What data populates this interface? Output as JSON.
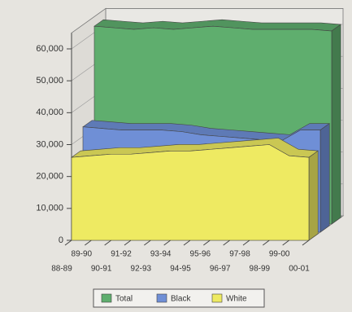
{
  "chart_data": {
    "type": "area3d",
    "categories": [
      "88-89",
      "89-90",
      "90-91",
      "91-92",
      "92-93",
      "93-94",
      "94-95",
      "95-96",
      "96-97",
      "97-98",
      "98-99",
      "99-00",
      "00-01"
    ],
    "series": [
      {
        "name": "Total",
        "color": "#5fae6e",
        "values": [
          62000,
          61500,
          61000,
          61500,
          61000,
          61500,
          62000,
          61500,
          61000,
          61000,
          61000,
          61000,
          60500
        ]
      },
      {
        "name": "Black",
        "color": "#6f8fd6",
        "values": [
          33000,
          32500,
          32000,
          32000,
          32000,
          31500,
          30500,
          30000,
          29500,
          29000,
          28500,
          32000,
          32000
        ]
      },
      {
        "name": "White",
        "color": "#eeea62",
        "values": [
          26000,
          26500,
          27000,
          27000,
          27500,
          28000,
          28000,
          28500,
          29000,
          29500,
          30000,
          26500,
          26000
        ]
      }
    ],
    "ylim": [
      0,
      65000
    ],
    "yticks": [
      0,
      {
        "value": 10000,
        "label": "10,000"
      },
      {
        "value": 20000,
        "label": "20,000"
      },
      {
        "value": 30000,
        "label": "30,000"
      },
      {
        "value": 40000,
        "label": "40,000"
      },
      {
        "value": 50000,
        "label": "50,000"
      },
      {
        "value": 60000,
        "label": "60,000"
      }
    ],
    "grid": true
  }
}
